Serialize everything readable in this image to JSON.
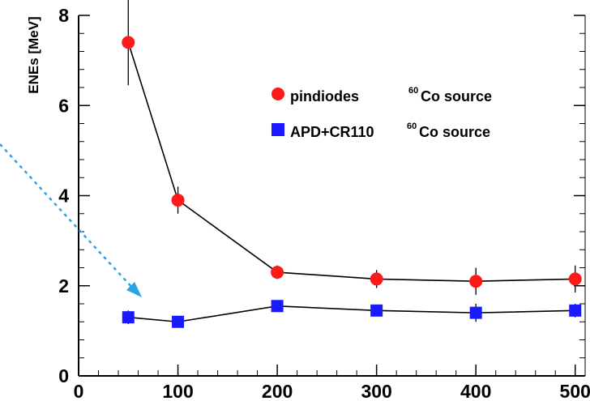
{
  "chart_data": {
    "type": "scatter",
    "title": "",
    "xlabel": "",
    "ylabel": "ENEs [MeV]",
    "xlim": [
      0,
      510
    ],
    "ylim": [
      0,
      8
    ],
    "x_ticks": [
      0,
      100,
      200,
      300,
      400,
      500
    ],
    "y_ticks": [
      0,
      2,
      4,
      6,
      8
    ],
    "grid": false,
    "legend_position": "top-right",
    "series": [
      {
        "name": "pindiodes",
        "label_suffix": "Co source",
        "isotope_mass": "60",
        "marker": "circle",
        "color": "#ff1a1a",
        "x": [
          50,
          100,
          200,
          300,
          400,
          500
        ],
        "y": [
          7.4,
          3.9,
          2.3,
          2.15,
          2.1,
          2.15
        ],
        "yerr": [
          0.95,
          0.3,
          0.15,
          0.2,
          0.3,
          0.3
        ]
      },
      {
        "name": "APD+CR110",
        "label_suffix": "Co source",
        "isotope_mass": "60",
        "marker": "square",
        "color": "#1a1aff",
        "x": [
          50,
          100,
          200,
          300,
          400,
          500
        ],
        "y": [
          1.3,
          1.2,
          1.55,
          1.45,
          1.4,
          1.45
        ],
        "yerr": [
          0.15,
          0.05,
          0.1,
          0.08,
          0.2,
          0.15
        ]
      }
    ],
    "annotation": {
      "type": "dashed-arrow",
      "color": "#29a3e6"
    }
  }
}
